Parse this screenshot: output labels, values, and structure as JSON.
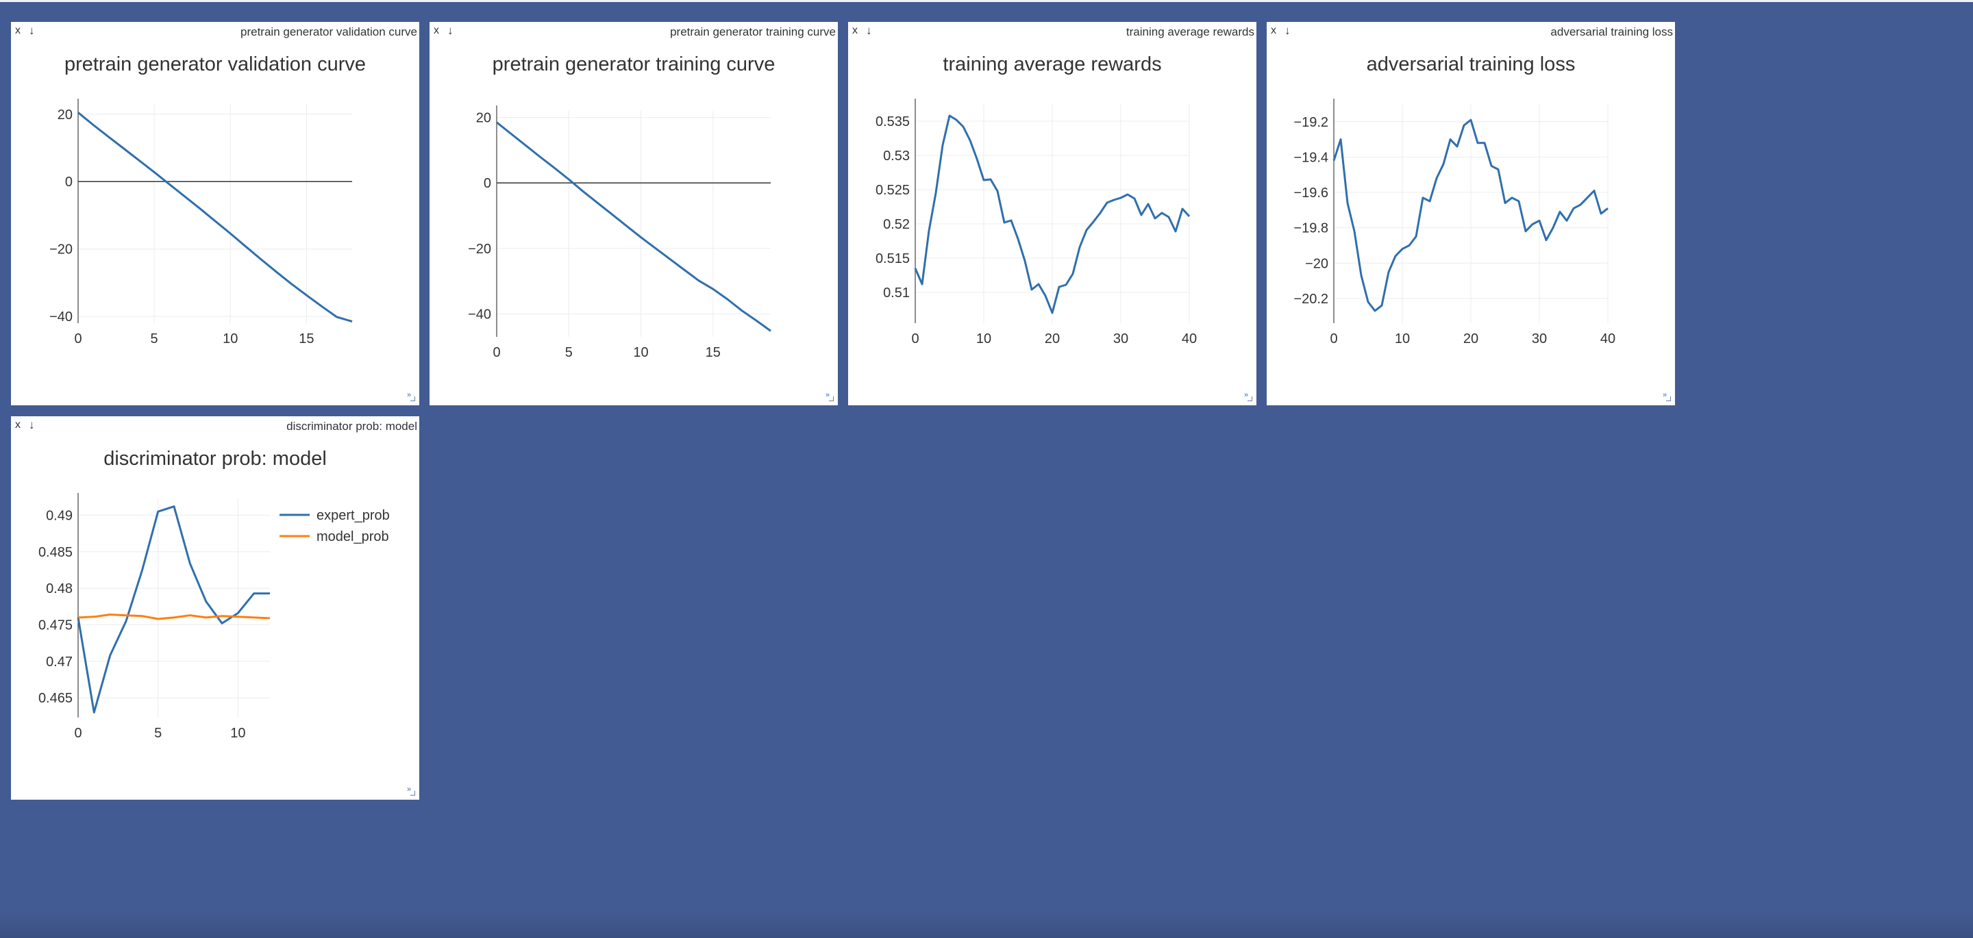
{
  "colors": {
    "background": "#425b92",
    "series_blue": "#2f6fad",
    "series_orange": "#ff7f0e"
  },
  "icons": {
    "close": "x-icon",
    "download": "down-arrow-icon",
    "resize": "resize-icon"
  },
  "panes": [
    {
      "window_title": "pretrain generator validation curve",
      "close_label": "x",
      "download_label": "↓",
      "resize_label": "»",
      "chart_data": {
        "type": "line",
        "title": "pretrain generator validation curve",
        "xlabel": "",
        "ylabel": "",
        "xlim": [
          0,
          18
        ],
        "ylim": [
          -42,
          23
        ],
        "xticks": [
          0,
          5,
          10,
          15
        ],
        "yticks": [
          20,
          0,
          -20,
          -40
        ],
        "ytick_labels": [
          "20",
          "0",
          "−20",
          "−40"
        ],
        "zero_line": true,
        "grid": true,
        "legend": "none",
        "series": [
          {
            "name": "",
            "color": "#2f6fad",
            "x": [
              0,
              1,
              2,
              3,
              4,
              5,
              6,
              7,
              8,
              9,
              10,
              11,
              12,
              13,
              14,
              15,
              16,
              17,
              18
            ],
            "y": [
              20.5,
              16.8,
              13.3,
              9.8,
              6.3,
              2.8,
              -0.8,
              -4.4,
              -8.0,
              -11.7,
              -15.4,
              -19.2,
              -23.0,
              -26.7,
              -30.3,
              -33.7,
              -37.0,
              -40.2,
              -41.5
            ]
          }
        ]
      }
    },
    {
      "window_title": "pretrain generator training curve",
      "close_label": "x",
      "download_label": "↓",
      "resize_label": "»",
      "chart_data": {
        "type": "line",
        "title": "pretrain generator training curve",
        "xlabel": "",
        "ylabel": "",
        "xlim": [
          0,
          19
        ],
        "ylim": [
          -47,
          22
        ],
        "xticks": [
          0,
          5,
          10,
          15
        ],
        "yticks": [
          20,
          0,
          -20,
          -40
        ],
        "ytick_labels": [
          "20",
          "0",
          "−20",
          "−40"
        ],
        "zero_line": true,
        "grid": true,
        "legend": "none",
        "series": [
          {
            "name": "",
            "color": "#2f6fad",
            "x": [
              0,
              1,
              2,
              3,
              4,
              5,
              6,
              7,
              8,
              9,
              10,
              11,
              12,
              13,
              14,
              15,
              16,
              17,
              18,
              19
            ],
            "y": [
              18.5,
              15.0,
              11.5,
              8.0,
              4.6,
              1.1,
              -2.6,
              -6.1,
              -9.6,
              -13.1,
              -16.6,
              -19.9,
              -23.2,
              -26.5,
              -29.8,
              -32.4,
              -35.5,
              -39.0,
              -42.0,
              -45.2
            ]
          }
        ]
      }
    },
    {
      "window_title": "training average rewards",
      "close_label": "x",
      "download_label": "↓",
      "resize_label": "»",
      "chart_data": {
        "type": "line",
        "title": "training average rewards",
        "xlabel": "",
        "ylabel": "",
        "xlim": [
          0,
          40
        ],
        "ylim": [
          0.5055,
          0.5375
        ],
        "xticks": [
          0,
          10,
          20,
          30,
          40
        ],
        "yticks": [
          0.535,
          0.53,
          0.525,
          0.52,
          0.515,
          0.51
        ],
        "ytick_labels": [
          "0.535",
          "0.53",
          "0.525",
          "0.52",
          "0.515",
          "0.51"
        ],
        "zero_line": false,
        "grid": true,
        "legend": "none",
        "series": [
          {
            "name": "",
            "color": "#2f6fad",
            "x": [
              0,
              1,
              2,
              3,
              4,
              5,
              6,
              7,
              8,
              9,
              10,
              11,
              12,
              13,
              14,
              15,
              16,
              17,
              18,
              19,
              20,
              21,
              22,
              23,
              24,
              25,
              26,
              27,
              28,
              29,
              30,
              31,
              32,
              33,
              34,
              35,
              36,
              37,
              38,
              39,
              40
            ],
            "y": [
              0.5135,
              0.5112,
              0.519,
              0.5245,
              0.5315,
              0.5358,
              0.5352,
              0.5342,
              0.5322,
              0.5295,
              0.5264,
              0.5265,
              0.5248,
              0.5202,
              0.5205,
              0.5178,
              0.5146,
              0.5104,
              0.5112,
              0.5095,
              0.507,
              0.5108,
              0.5111,
              0.5127,
              0.5166,
              0.5191,
              0.5203,
              0.5216,
              0.5231,
              0.5235,
              0.5238,
              0.5243,
              0.5237,
              0.5213,
              0.5229,
              0.5208,
              0.5216,
              0.521,
              0.5189,
              0.5222,
              0.5211
            ]
          }
        ]
      }
    },
    {
      "window_title": "adversarial training loss",
      "close_label": "x",
      "download_label": "↓",
      "resize_label": "»",
      "chart_data": {
        "type": "line",
        "title": "adversarial training loss",
        "xlabel": "",
        "ylabel": "",
        "xlim": [
          0,
          40
        ],
        "ylim": [
          -20.34,
          -19.1
        ],
        "xticks": [
          0,
          10,
          20,
          30,
          40
        ],
        "yticks": [
          -19.2,
          -19.4,
          -19.6,
          -19.8,
          -20,
          -20.2
        ],
        "ytick_labels": [
          "−19.2",
          "−19.4",
          "−19.6",
          "−19.8",
          "−20",
          "−20.2"
        ],
        "zero_line": false,
        "grid": true,
        "legend": "none",
        "series": [
          {
            "name": "",
            "color": "#2f6fad",
            "x": [
              0,
              1,
              2,
              3,
              4,
              5,
              6,
              7,
              8,
              9,
              10,
              11,
              12,
              13,
              14,
              15,
              16,
              17,
              18,
              19,
              20,
              21,
              22,
              23,
              24,
              25,
              26,
              27,
              28,
              29,
              30,
              31,
              32,
              33,
              34,
              35,
              36,
              37,
              38,
              39,
              40
            ],
            "y": [
              -19.42,
              -19.3,
              -19.66,
              -19.82,
              -20.07,
              -20.22,
              -20.27,
              -20.24,
              -20.05,
              -19.96,
              -19.92,
              -19.9,
              -19.85,
              -19.63,
              -19.65,
              -19.52,
              -19.44,
              -19.3,
              -19.34,
              -19.22,
              -19.19,
              -19.32,
              -19.32,
              -19.45,
              -19.47,
              -19.66,
              -19.63,
              -19.65,
              -19.82,
              -19.78,
              -19.76,
              -19.87,
              -19.8,
              -19.71,
              -19.76,
              -19.69,
              -19.67,
              -19.63,
              -19.59,
              -19.72,
              -19.69
            ]
          }
        ]
      }
    },
    {
      "window_title": "discriminator prob: model",
      "close_label": "x",
      "download_label": "↓",
      "resize_label": "»",
      "chart_data": {
        "type": "line",
        "title": "discriminator prob: model",
        "xlabel": "",
        "ylabel": "",
        "xlim": [
          0,
          12
        ],
        "ylim": [
          0.4623,
          0.4923
        ],
        "xticks": [
          0,
          5,
          10
        ],
        "yticks": [
          0.49,
          0.485,
          0.48,
          0.475,
          0.47,
          0.465
        ],
        "ytick_labels": [
          "0.49",
          "0.485",
          "0.48",
          "0.475",
          "0.47",
          "0.465"
        ],
        "zero_line": false,
        "grid": true,
        "legend": "top-right",
        "series": [
          {
            "name": "expert_prob",
            "color": "#2f6fad",
            "x": [
              0,
              1,
              2,
              3,
              4,
              5,
              6,
              7,
              8,
              9,
              10,
              11,
              12
            ],
            "y": [
              0.476,
              0.463,
              0.4708,
              0.4755,
              0.4824,
              0.4905,
              0.4912,
              0.4834,
              0.4782,
              0.4752,
              0.4766,
              0.4793,
              0.4793
            ]
          },
          {
            "name": "model_prob",
            "color": "#ff7f0e",
            "x": [
              0,
              1,
              2,
              3,
              4,
              5,
              6,
              7,
              8,
              9,
              10,
              11,
              12
            ],
            "y": [
              0.476,
              0.4761,
              0.4764,
              0.4763,
              0.4762,
              0.4758,
              0.476,
              0.4763,
              0.476,
              0.4762,
              0.4761,
              0.476,
              0.4759
            ]
          }
        ]
      }
    }
  ]
}
